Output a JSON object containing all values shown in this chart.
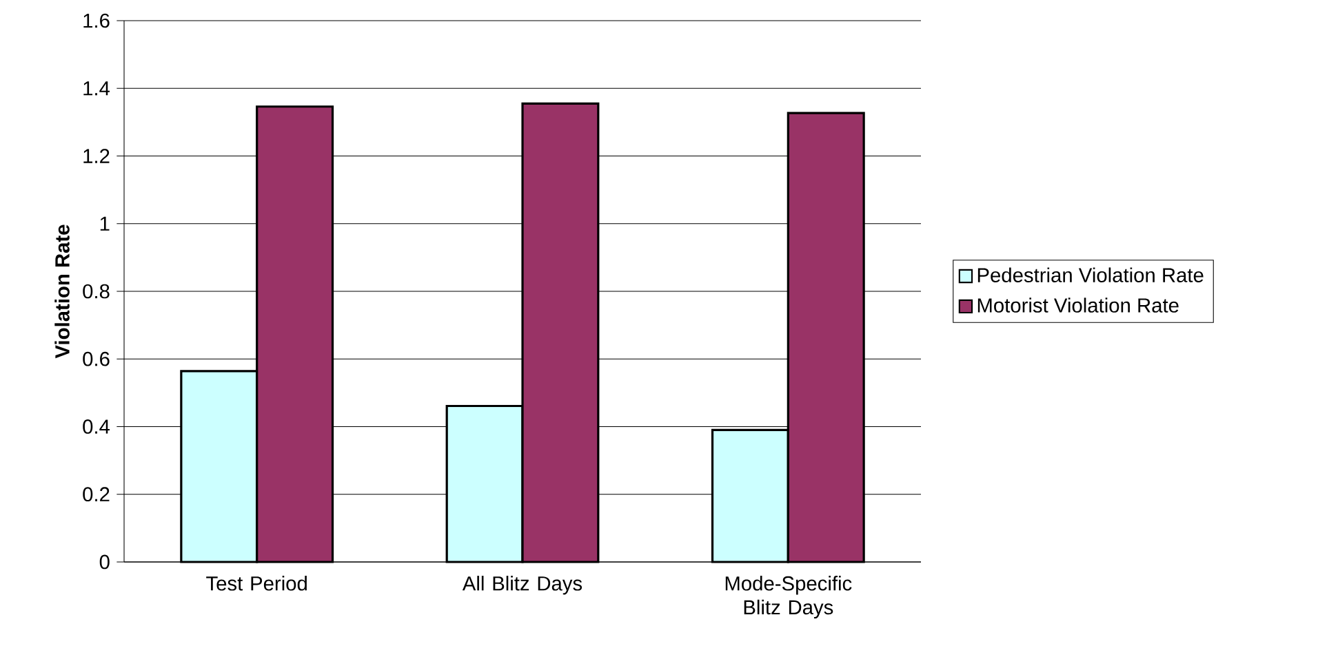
{
  "chart_data": {
    "type": "bar",
    "ylabel": "Violation Rate",
    "categories": [
      "Test Period",
      "All Blitz Days",
      "Mode-Specific Blitz Days"
    ],
    "series": [
      {
        "name": "Pedestrian Violation Rate",
        "color": "#ccffff",
        "values": [
          0.564,
          0.461,
          0.39
        ]
      },
      {
        "name": "Motorist Violation Rate",
        "color": "#993366",
        "values": [
          1.346,
          1.355,
          1.327
        ]
      }
    ],
    "ylim": [
      0,
      1.6
    ],
    "yticks": [
      0,
      0.2,
      0.4,
      0.6,
      0.8,
      1,
      1.2,
      1.4,
      1.6
    ],
    "grid": "y",
    "legend": "right"
  }
}
